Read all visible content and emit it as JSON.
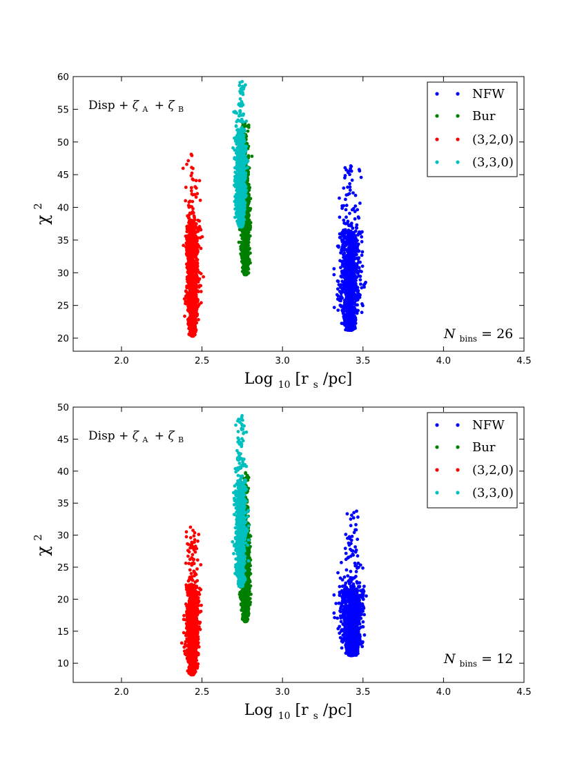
{
  "chart_data": [
    {
      "type": "scatter",
      "title": "",
      "annotation": "Disp + ζ_A + ζ_B",
      "annotation_parts": {
        "base": "Disp",
        "plus": "+",
        "z": "ζ",
        "subA": "A",
        "subB": "B"
      },
      "nbins_label": {
        "var": "N",
        "sub": "bins",
        "eq": "=",
        "value": "26"
      },
      "xlabel": {
        "pre": "Log",
        "sub": "10",
        "body": "[r",
        "sub2": "s",
        "post": "/pc]"
      },
      "ylabel": {
        "base": "χ",
        "sup": "2"
      },
      "xlim": [
        1.7,
        4.5
      ],
      "ylim": [
        18,
        60
      ],
      "xticks": [
        "2.0",
        "2.5",
        "3.0",
        "3.5",
        "4.0",
        "4.5"
      ],
      "xtick_values": [
        2.0,
        2.5,
        3.0,
        3.5,
        4.0,
        4.5
      ],
      "yticks": [
        "20",
        "25",
        "30",
        "35",
        "40",
        "45",
        "50",
        "55",
        "60"
      ],
      "ytick_values": [
        20,
        25,
        30,
        35,
        40,
        45,
        50,
        55,
        60
      ],
      "legend_position": "top-right",
      "series": [
        {
          "name": "NFW",
          "color": "#0000ff",
          "x_center": 3.42,
          "x_spread": 0.08,
          "y_min": 21.2,
          "y_core": 36,
          "y_max": 47,
          "x_min": 3.32,
          "x_max": 3.53
        },
        {
          "name": "Bur",
          "color": "#008000",
          "x_center": 2.77,
          "x_spread": 0.035,
          "y_min": 29.7,
          "y_core": 46,
          "y_max": 53,
          "x_min": 2.72,
          "x_max": 2.81
        },
        {
          "name": "(3,2,0)",
          "color": "#ff0000",
          "x_center": 2.44,
          "x_spread": 0.05,
          "y_min": 20.3,
          "y_core": 37,
          "y_max": 48.5,
          "x_min": 2.37,
          "x_max": 2.51
        },
        {
          "name": "(3,3,0)",
          "color": "#00bfbf",
          "x_center": 2.74,
          "x_spread": 0.04,
          "y_min": 37,
          "y_core": 51,
          "y_max": 59.3,
          "x_min": 2.69,
          "x_max": 2.79
        }
      ]
    },
    {
      "type": "scatter",
      "title": "",
      "annotation": "Disp + ζ_A + ζ_B",
      "annotation_parts": {
        "base": "Disp",
        "plus": "+",
        "z": "ζ",
        "subA": "A",
        "subB": "B"
      },
      "nbins_label": {
        "var": "N",
        "sub": "bins",
        "eq": "=",
        "value": "12"
      },
      "xlabel": {
        "pre": "Log",
        "sub": "10",
        "body": "[r",
        "sub2": "s",
        "post": "/pc]"
      },
      "ylabel": {
        "base": "χ",
        "sup": "2"
      },
      "xlim": [
        1.7,
        4.5
      ],
      "ylim": [
        7,
        50
      ],
      "xticks": [
        "2.0",
        "2.5",
        "3.0",
        "3.5",
        "4.0",
        "4.5"
      ],
      "xtick_values": [
        2.0,
        2.5,
        3.0,
        3.5,
        4.0,
        4.5
      ],
      "yticks": [
        "10",
        "15",
        "20",
        "25",
        "30",
        "35",
        "40",
        "45",
        "50"
      ],
      "ytick_values": [
        10,
        15,
        20,
        25,
        30,
        35,
        40,
        45,
        50
      ],
      "legend_position": "top-right",
      "series": [
        {
          "name": "NFW",
          "color": "#0000ff",
          "x_center": 3.43,
          "x_spread": 0.09,
          "y_min": 11.2,
          "y_core": 22,
          "y_max": 33.9,
          "x_min": 3.32,
          "x_max": 3.57
        },
        {
          "name": "Bur",
          "color": "#008000",
          "x_center": 2.77,
          "x_spread": 0.035,
          "y_min": 16.5,
          "y_core": 31,
          "y_max": 40,
          "x_min": 2.72,
          "x_max": 2.81
        },
        {
          "name": "(3,2,0)",
          "color": "#ff0000",
          "x_center": 2.44,
          "x_spread": 0.05,
          "y_min": 8.2,
          "y_core": 22,
          "y_max": 31.8,
          "x_min": 2.37,
          "x_max": 2.51
        },
        {
          "name": "(3,3,0)",
          "color": "#00bfbf",
          "x_center": 2.74,
          "x_spread": 0.04,
          "y_min": 22,
          "y_core": 38,
          "y_max": 49,
          "x_min": 2.68,
          "x_max": 2.79
        }
      ]
    }
  ]
}
